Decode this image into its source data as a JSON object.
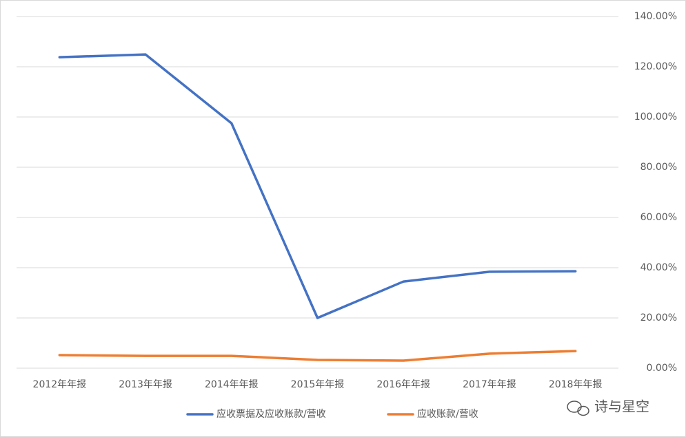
{
  "chart_data": {
    "type": "line",
    "categories": [
      "2012年年报",
      "2013年年报",
      "2014年年报",
      "2015年年报",
      "2016年年报",
      "2017年年报",
      "2018年年报"
    ],
    "series": [
      {
        "name": "应收票据及应收账款/营收",
        "color": "#4472c4",
        "values": [
          123.8,
          124.9,
          97.5,
          20.0,
          34.5,
          38.4,
          38.6
        ]
      },
      {
        "name": "应收账款/营收",
        "color": "#ed7d31",
        "values": [
          5.2,
          4.9,
          4.9,
          3.3,
          3.0,
          5.8,
          6.8
        ]
      }
    ],
    "ylim": [
      0,
      140
    ],
    "yticks": [
      {
        "value": 0,
        "label": "0.00%"
      },
      {
        "value": 20,
        "label": "20.00%"
      },
      {
        "value": 40,
        "label": "40.00%"
      },
      {
        "value": 60,
        "label": "60.00%"
      },
      {
        "value": 80,
        "label": "80.00%"
      },
      {
        "value": 100,
        "label": "100.00%"
      },
      {
        "value": 120,
        "label": "120.00%"
      },
      {
        "value": 140,
        "label": "140.00%"
      }
    ],
    "y_axis_side": "right",
    "grid": true,
    "legend": "bottom",
    "watermark": "诗与星空"
  }
}
